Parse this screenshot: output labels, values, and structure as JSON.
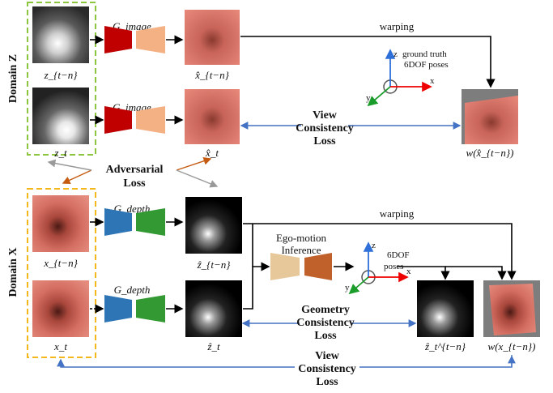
{
  "domains": {
    "z": "Domain Z",
    "x": "Domain X"
  },
  "generators": {
    "image": "G_image",
    "depth": "G_depth"
  },
  "images": {
    "z_tn": "z_{t−n}",
    "z_t": "z_t",
    "xhat_tn": "x̂_{t−n}",
    "xhat_t": "x̂_t",
    "warp_xhat": "w(x̂_{t−n})",
    "x_tn": "x_{t−n}",
    "x_t": "x_t",
    "zhat_tn": "ẑ_{t−n}",
    "zhat_t": "ẑ_t",
    "zhat_t_tn": "ẑ_t^{t−n}",
    "warp_x": "w(x_{t−n})"
  },
  "labels": {
    "warping_top": "warping",
    "warping_mid": "warping",
    "gt_line1": "ground truth",
    "gt_line2": "6DOF poses",
    "view_loss_1": [
      "View",
      "Consistency",
      "Loss"
    ],
    "adv_loss": [
      "Adversarial",
      "Loss"
    ],
    "ego_motion": [
      "Ego-motion",
      "Inference"
    ],
    "pose_lower": [
      "6DOF",
      "poses"
    ],
    "geom_loss": [
      "Geometry",
      "Consistency",
      "Loss"
    ],
    "view_loss_2": [
      "View",
      "Consistency",
      "Loss"
    ]
  },
  "axes": {
    "x": "x",
    "y": "y",
    "z": "z"
  },
  "colors": {
    "green_dash": "#8cc63f",
    "yellow_dash": "#f5b81c",
    "gen_image_a": "#c00000",
    "gen_image_b": "#f4b183",
    "gen_depth_a": "#2e75b6",
    "gen_depth_b": "#339933",
    "ego_a": "#e6c89a",
    "ego_b": "#c0602a",
    "blue_arrow": "#4472c4",
    "orange_arrow": "#c55a11",
    "gray_arrow": "#999999"
  }
}
